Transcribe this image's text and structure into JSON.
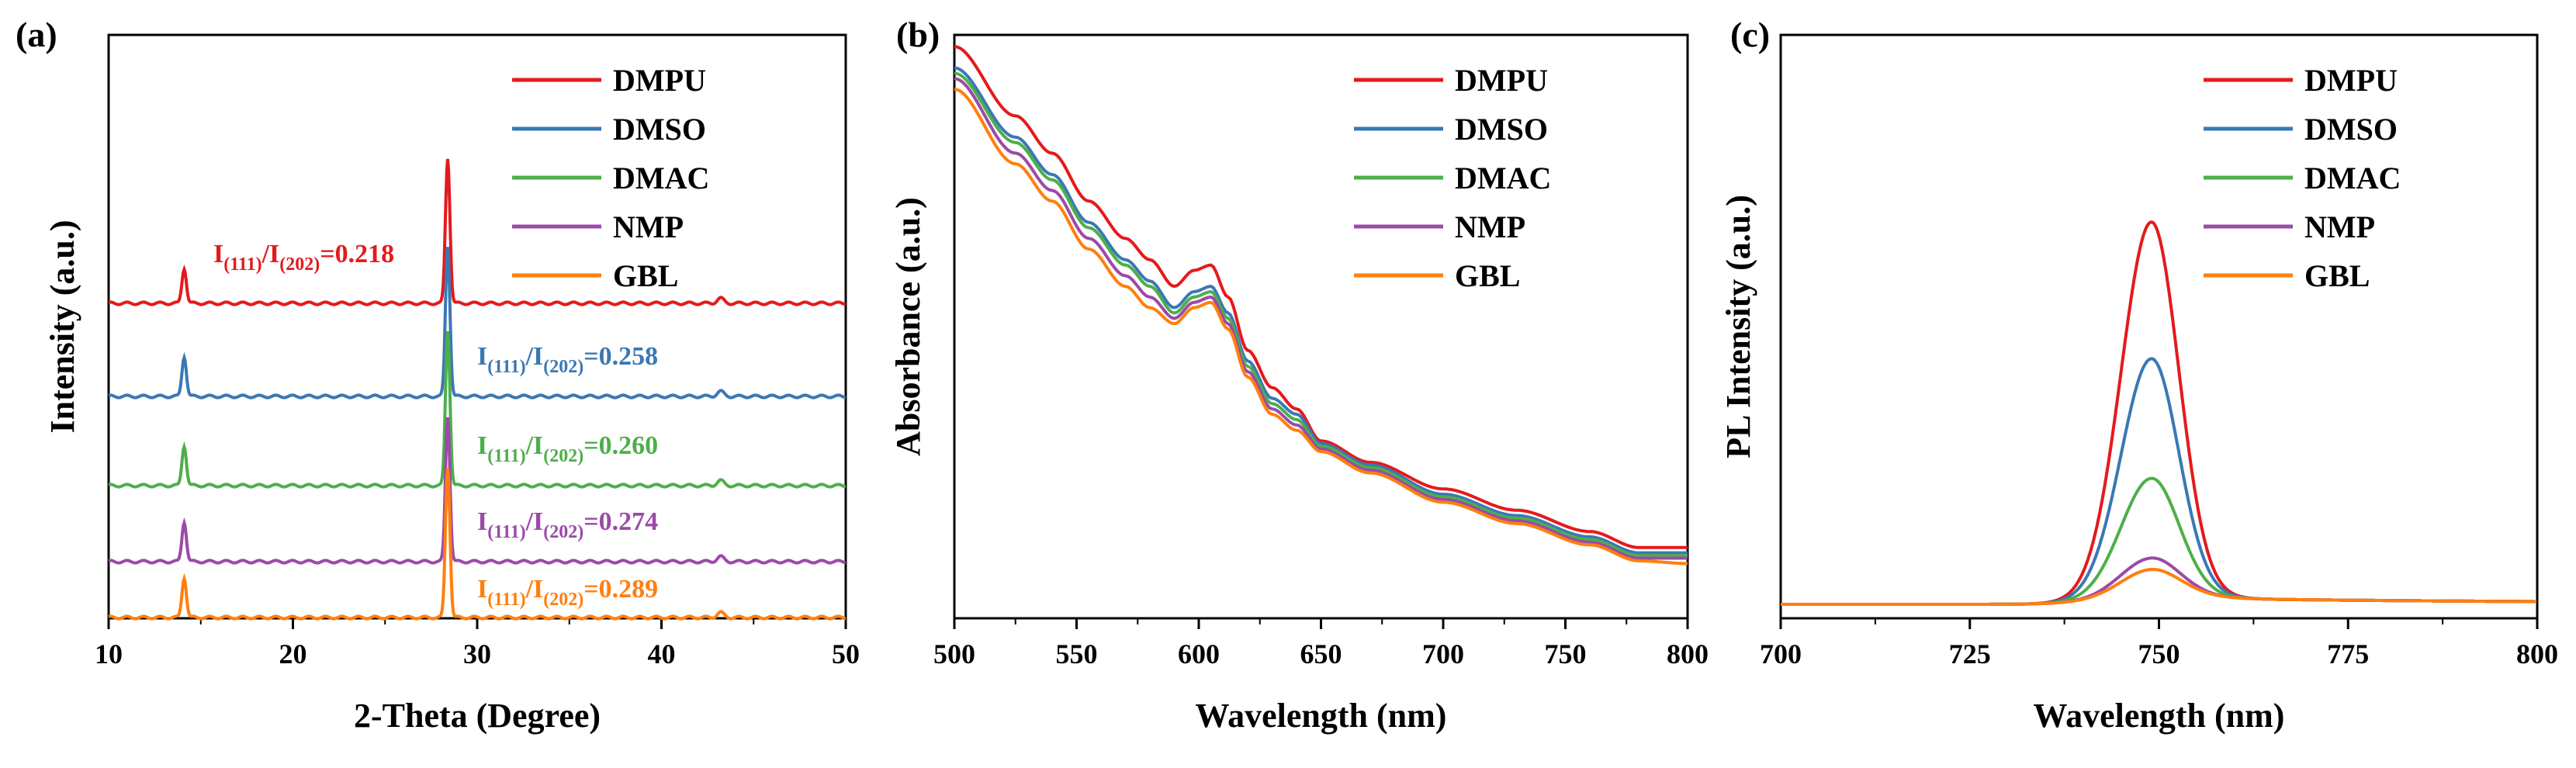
{
  "colors": {
    "DMPU": "#e41a1c",
    "DMSO": "#3a78b4",
    "DMAC": "#4daf4a",
    "NMP": "#9b4aa8",
    "GBL": "#ff7f0e"
  },
  "chart_data": [
    {
      "panel_label": "(a)",
      "type": "line",
      "title": "",
      "xlabel": "2-Theta (Degree)",
      "ylabel": "Intensity (a.u.)",
      "xlim": [
        10,
        50
      ],
      "xticks": [
        10,
        20,
        30,
        40,
        50
      ],
      "yticks_shown": false,
      "grid": false,
      "stacked": true,
      "legend_placement": "top-right",
      "series": [
        {
          "name": "DMPU",
          "offset": 4,
          "peaks": [
            {
              "x": 14.1,
              "h": 0.14
            },
            {
              "x": 28.4,
              "h": 0.58
            },
            {
              "x": 43.2,
              "h": 0.02
            }
          ],
          "annotation": {
            "main": "I",
            "sub1": "(111)",
            "mid": "/I",
            "sub2": "(202)",
            "value": "=0.218"
          }
        },
        {
          "name": "DMSO",
          "offset": 3,
          "peaks": [
            {
              "x": 14.1,
              "h": 0.16
            },
            {
              "x": 28.4,
              "h": 0.6
            },
            {
              "x": 43.2,
              "h": 0.02
            }
          ],
          "annotation": {
            "main": "I",
            "sub1": "(111)",
            "mid": "/I",
            "sub2": "(202)",
            "value": "=0.258"
          }
        },
        {
          "name": "DMAC",
          "offset": 2,
          "peaks": [
            {
              "x": 14.1,
              "h": 0.16
            },
            {
              "x": 28.4,
              "h": 0.62
            },
            {
              "x": 43.2,
              "h": 0.02
            }
          ],
          "annotation": {
            "main": "I",
            "sub1": "(111)",
            "mid": "/I",
            "sub2": "(202)",
            "value": "=0.260"
          }
        },
        {
          "name": "NMP",
          "offset": 1,
          "peaks": [
            {
              "x": 14.1,
              "h": 0.16
            },
            {
              "x": 28.4,
              "h": 0.58
            },
            {
              "x": 43.2,
              "h": 0.02
            }
          ],
          "annotation": {
            "main": "I",
            "sub1": "(111)",
            "mid": "/I",
            "sub2": "(202)",
            "value": "=0.274"
          }
        },
        {
          "name": "GBL",
          "offset": 0,
          "peaks": [
            {
              "x": 14.1,
              "h": 0.16
            },
            {
              "x": 28.4,
              "h": 0.6
            },
            {
              "x": 43.2,
              "h": 0.02
            }
          ],
          "annotation": {
            "main": "I",
            "sub1": "(111)",
            "mid": "/I",
            "sub2": "(202)",
            "value": "=0.289"
          }
        }
      ]
    },
    {
      "panel_label": "(b)",
      "type": "line",
      "title": "",
      "xlabel": "Wavelength (nm)",
      "ylabel": "Absorbance (a.u.)",
      "xlim": [
        500,
        800
      ],
      "ylim": [
        0,
        1
      ],
      "xticks": [
        500,
        550,
        600,
        650,
        700,
        750,
        800
      ],
      "yticks_shown": false,
      "grid": false,
      "legend_placement": "top-right",
      "x": [
        500,
        525,
        540,
        555,
        570,
        580,
        590,
        598,
        605,
        612,
        620,
        630,
        640,
        650,
        670,
        700,
        730,
        760,
        780,
        800
      ],
      "series": [
        {
          "name": "DMPU",
          "values": [
            1.0,
            0.87,
            0.8,
            0.71,
            0.64,
            0.6,
            0.55,
            0.58,
            0.59,
            0.53,
            0.43,
            0.36,
            0.32,
            0.26,
            0.22,
            0.17,
            0.13,
            0.09,
            0.06,
            0.06
          ]
        },
        {
          "name": "DMSO",
          "values": [
            0.96,
            0.83,
            0.76,
            0.67,
            0.6,
            0.56,
            0.51,
            0.54,
            0.55,
            0.5,
            0.41,
            0.34,
            0.31,
            0.255,
            0.215,
            0.16,
            0.12,
            0.08,
            0.05,
            0.05
          ]
        },
        {
          "name": "DMAC",
          "values": [
            0.95,
            0.82,
            0.75,
            0.66,
            0.59,
            0.55,
            0.5,
            0.53,
            0.54,
            0.49,
            0.4,
            0.33,
            0.3,
            0.25,
            0.21,
            0.155,
            0.115,
            0.075,
            0.045,
            0.045
          ]
        },
        {
          "name": "NMP",
          "values": [
            0.94,
            0.8,
            0.73,
            0.64,
            0.57,
            0.53,
            0.49,
            0.52,
            0.53,
            0.48,
            0.39,
            0.32,
            0.29,
            0.245,
            0.205,
            0.15,
            0.11,
            0.07,
            0.04,
            0.04
          ]
        },
        {
          "name": "GBL",
          "values": [
            0.92,
            0.78,
            0.71,
            0.62,
            0.55,
            0.51,
            0.48,
            0.51,
            0.52,
            0.47,
            0.38,
            0.31,
            0.28,
            0.24,
            0.2,
            0.145,
            0.105,
            0.065,
            0.035,
            0.03
          ]
        }
      ]
    },
    {
      "panel_label": "(c)",
      "type": "line",
      "title": "",
      "xlabel": "Wavelength (nm)",
      "ylabel": "PL Intensity (a.u.)",
      "xlim": [
        700,
        800
      ],
      "ylim": [
        0,
        1
      ],
      "xticks": [
        700,
        725,
        750,
        775,
        800
      ],
      "yticks_shown": false,
      "grid": false,
      "legend_placement": "top-right",
      "peak_center": 749,
      "series": [
        {
          "name": "DMPU",
          "peak": 0.655
        },
        {
          "name": "DMSO",
          "peak": 0.415
        },
        {
          "name": "DMAC",
          "peak": 0.205
        },
        {
          "name": "NMP",
          "peak": 0.065
        },
        {
          "name": "GBL",
          "peak": 0.045
        }
      ]
    }
  ]
}
